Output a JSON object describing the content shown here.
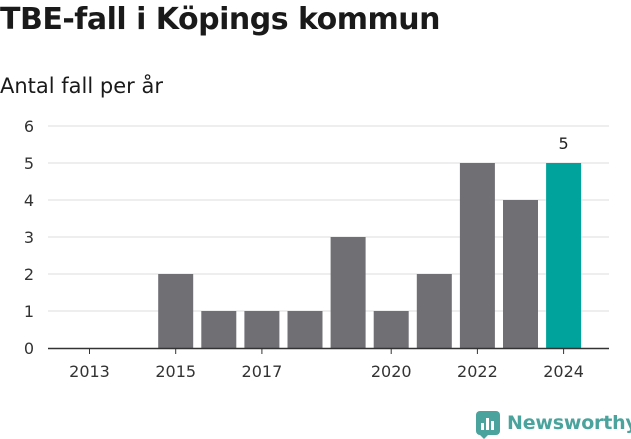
{
  "title": "TBE-fall i Köpings kommun",
  "subtitle": "Antal fall per år",
  "brand": {
    "name": "Newsworthy",
    "icon": "newsworthy-bar-chart-icon"
  },
  "colors": {
    "bar": "#706f74",
    "highlight": "#00a39b",
    "grid": "#dddddd",
    "axis": "#333333"
  },
  "chart_data": {
    "type": "bar",
    "categories": [
      "2013",
      "2014",
      "2015",
      "2016",
      "2017",
      "2018",
      "2019",
      "2020",
      "2021",
      "2022",
      "2023",
      "2024"
    ],
    "tick_labels": [
      "2013",
      "2015",
      "2017",
      "2020",
      "2022",
      "2024"
    ],
    "values": [
      0,
      0,
      2,
      1,
      1,
      1,
      3,
      1,
      2,
      5,
      4,
      5
    ],
    "highlight_index": 11,
    "data_labels": [
      {
        "index": 11,
        "text": "5"
      }
    ],
    "yticks": [
      "0",
      "1",
      "2",
      "3",
      "4",
      "5",
      "6"
    ],
    "ylim": [
      0,
      6
    ],
    "grid": true,
    "title": "TBE-fall i Köpings kommun",
    "ylabel": "Antal fall per år",
    "xlabel": ""
  }
}
